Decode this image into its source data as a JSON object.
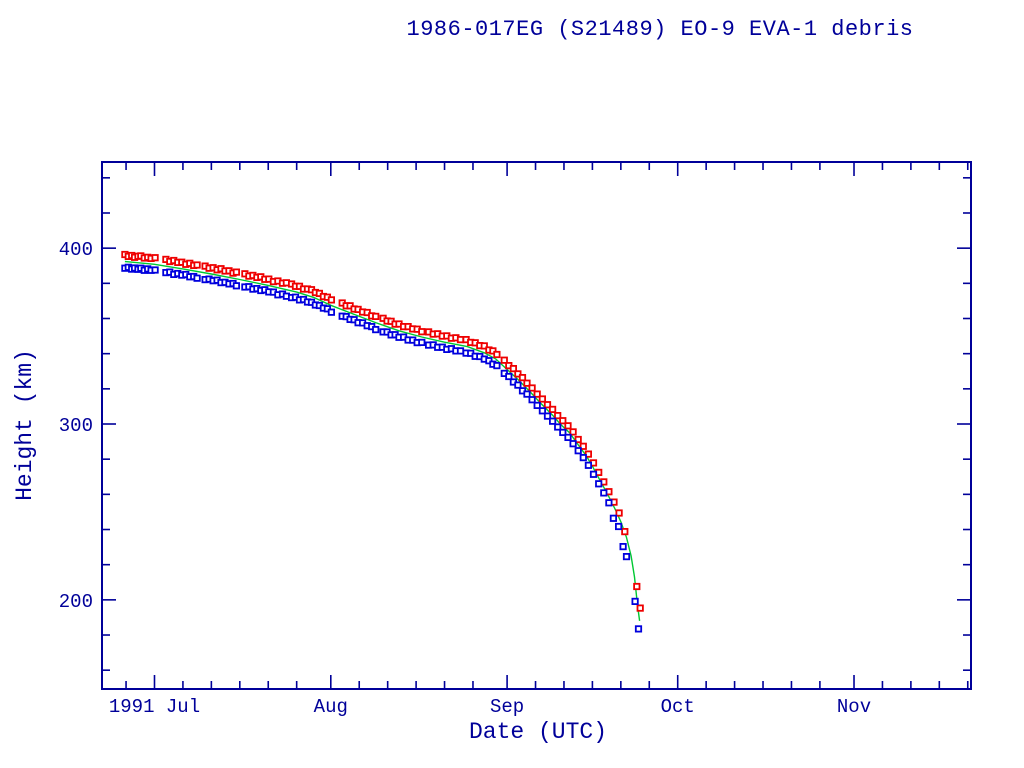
{
  "colors": {
    "axis": "#000099",
    "text": "#000099",
    "apogee": "#ee0000",
    "perigee": "#0000dd",
    "fit_line": "#00c832",
    "background": "#ffffff"
  },
  "chart_data": {
    "type": "scatter",
    "title": "1986-017EG (S21489) EO-9 EVA-1 debris",
    "xlabel": "Date (UTC)",
    "ylabel": "Height (km)",
    "x_unit": "days from 1991-07-01",
    "xlim": [
      -9.23,
      143.57
    ],
    "ylim": [
      149.3,
      449.0
    ],
    "grid": false,
    "legend": "none",
    "x_axis": {
      "major": [
        {
          "d": 0,
          "label": "1991 Jul"
        },
        {
          "d": 31,
          "label": "Aug"
        },
        {
          "d": 62,
          "label": "Sep"
        },
        {
          "d": 92,
          "label": "Oct"
        },
        {
          "d": 123,
          "label": "Nov"
        }
      ],
      "minor_d": [
        -5,
        5,
        10,
        15,
        20,
        25,
        36,
        41,
        46,
        51,
        56,
        67,
        72,
        77,
        82,
        87,
        97,
        102,
        107,
        112,
        117,
        128,
        133,
        138,
        143
      ]
    },
    "y_axis": {
      "major": [
        {
          "value": 400,
          "label": "400"
        },
        {
          "value": 300,
          "label": "300"
        },
        {
          "value": 200,
          "label": "200"
        }
      ],
      "minor_values": [
        160,
        180,
        220,
        240,
        260,
        280,
        320,
        340,
        360,
        380,
        420,
        440
      ]
    },
    "series": [
      {
        "name": "apogee-height",
        "type": "scatter",
        "marker": "open-square",
        "color": "#ee0000",
        "points": [
          [
            -5.2,
            396.4
          ],
          [
            -4.6,
            395.3
          ],
          [
            -4.0,
            395.8
          ],
          [
            -3.5,
            394.8
          ],
          [
            -2.9,
            395.4
          ],
          [
            -2.4,
            395.6
          ],
          [
            -1.8,
            394.4
          ],
          [
            -1.2,
            394.8
          ],
          [
            -0.6,
            394.2
          ],
          [
            0.1,
            394.6
          ],
          [
            2.0,
            393.6
          ],
          [
            2.7,
            392.4
          ],
          [
            3.4,
            393.0
          ],
          [
            4.1,
            391.9
          ],
          [
            4.8,
            392.0
          ],
          [
            5.5,
            390.8
          ],
          [
            6.2,
            391.4
          ],
          [
            6.9,
            390.2
          ],
          [
            7.5,
            390.4
          ],
          [
            8.9,
            389.8
          ],
          [
            9.6,
            388.6
          ],
          [
            10.3,
            388.9
          ],
          [
            11.0,
            387.7
          ],
          [
            11.7,
            388.3
          ],
          [
            12.4,
            387.0
          ],
          [
            13.1,
            387.1
          ],
          [
            13.8,
            385.8
          ],
          [
            14.4,
            386.4
          ],
          [
            15.9,
            385.4
          ],
          [
            16.6,
            384.1
          ],
          [
            17.3,
            384.5
          ],
          [
            18.0,
            383.4
          ],
          [
            18.7,
            383.7
          ],
          [
            19.4,
            382.3
          ],
          [
            20.1,
            382.4
          ],
          [
            20.9,
            381.0
          ],
          [
            21.7,
            381.3
          ],
          [
            22.5,
            380.1
          ],
          [
            23.2,
            380.3
          ],
          [
            24.1,
            379.6
          ],
          [
            24.8,
            378.3
          ],
          [
            25.5,
            378.3
          ],
          [
            26.2,
            376.8
          ],
          [
            26.9,
            376.8
          ],
          [
            27.6,
            376.4
          ],
          [
            28.3,
            374.8
          ],
          [
            29.0,
            374.3
          ],
          [
            29.7,
            372.5
          ],
          [
            30.4,
            372.1
          ],
          [
            31.1,
            370.6
          ],
          [
            33.0,
            368.8
          ],
          [
            33.7,
            367.2
          ],
          [
            34.4,
            367.2
          ],
          [
            35.1,
            365.4
          ],
          [
            35.8,
            365.2
          ],
          [
            36.6,
            363.7
          ],
          [
            37.4,
            363.4
          ],
          [
            38.2,
            361.5
          ],
          [
            38.9,
            361.2
          ],
          [
            40.2,
            360.1
          ],
          [
            40.9,
            358.6
          ],
          [
            41.6,
            358.4
          ],
          [
            42.3,
            356.8
          ],
          [
            43.0,
            356.9
          ],
          [
            43.8,
            355.4
          ],
          [
            44.6,
            355.4
          ],
          [
            45.4,
            354.1
          ],
          [
            46.2,
            353.9
          ],
          [
            47.0,
            352.5
          ],
          [
            48.2,
            352.4
          ],
          [
            49.0,
            351.1
          ],
          [
            49.8,
            351.3
          ],
          [
            50.6,
            350.0
          ],
          [
            51.4,
            350.1
          ],
          [
            52.2,
            348.8
          ],
          [
            53.0,
            349.0
          ],
          [
            53.8,
            348.0
          ],
          [
            54.8,
            348.0
          ],
          [
            55.6,
            346.4
          ],
          [
            56.4,
            346.2
          ],
          [
            57.2,
            344.6
          ],
          [
            58.0,
            344.4
          ],
          [
            58.8,
            342.1
          ],
          [
            59.5,
            341.6
          ],
          [
            60.2,
            339.5
          ],
          [
            61.5,
            336.3
          ],
          [
            62.3,
            333.2
          ],
          [
            63.1,
            331.5
          ],
          [
            63.9,
            328.5
          ],
          [
            64.7,
            326.4
          ],
          [
            65.5,
            323.2
          ],
          [
            66.4,
            320.5
          ],
          [
            67.3,
            317.0
          ],
          [
            68.2,
            314.2
          ],
          [
            69.1,
            311.0
          ],
          [
            70.0,
            308.3
          ],
          [
            70.9,
            304.8
          ],
          [
            71.8,
            301.9
          ],
          [
            72.7,
            299.0
          ],
          [
            73.6,
            295.5
          ],
          [
            74.5,
            291.2
          ],
          [
            75.4,
            287.3
          ],
          [
            76.3,
            282.9
          ],
          [
            77.2,
            277.9
          ],
          [
            78.1,
            272.5
          ],
          [
            79.0,
            267.1
          ],
          [
            79.9,
            261.5
          ],
          [
            80.8,
            255.6
          ],
          [
            81.7,
            249.4
          ],
          [
            82.7,
            238.8
          ],
          [
            84.8,
            207.6
          ],
          [
            85.4,
            195.3
          ]
        ]
      },
      {
        "name": "perigee-height",
        "type": "scatter",
        "marker": "open-square",
        "color": "#0000dd",
        "points": [
          [
            -5.2,
            388.6
          ],
          [
            -4.6,
            389.1
          ],
          [
            -4.0,
            388.1
          ],
          [
            -3.5,
            388.7
          ],
          [
            -2.9,
            388.0
          ],
          [
            -2.4,
            388.6
          ],
          [
            -1.8,
            387.4
          ],
          [
            -1.2,
            388.2
          ],
          [
            -0.6,
            387.4
          ],
          [
            0.1,
            387.6
          ],
          [
            2.0,
            386.1
          ],
          [
            2.7,
            386.4
          ],
          [
            3.4,
            385.1
          ],
          [
            4.1,
            385.6
          ],
          [
            4.8,
            384.7
          ],
          [
            5.5,
            385.0
          ],
          [
            6.2,
            383.7
          ],
          [
            6.9,
            383.9
          ],
          [
            7.5,
            382.9
          ],
          [
            8.9,
            382.1
          ],
          [
            9.6,
            382.4
          ],
          [
            10.3,
            381.5
          ],
          [
            11.0,
            381.8
          ],
          [
            11.7,
            380.4
          ],
          [
            12.4,
            380.6
          ],
          [
            13.1,
            379.7
          ],
          [
            13.8,
            379.9
          ],
          [
            14.4,
            378.6
          ],
          [
            15.9,
            377.9
          ],
          [
            16.6,
            378.1
          ],
          [
            17.3,
            376.7
          ],
          [
            18.0,
            377.0
          ],
          [
            18.7,
            375.9
          ],
          [
            19.4,
            376.3
          ],
          [
            20.1,
            375.1
          ],
          [
            20.9,
            375.0
          ],
          [
            21.7,
            373.5
          ],
          [
            22.5,
            373.9
          ],
          [
            23.2,
            372.7
          ],
          [
            24.1,
            371.9
          ],
          [
            24.8,
            372.1
          ],
          [
            25.5,
            370.6
          ],
          [
            26.2,
            370.8
          ],
          [
            26.9,
            369.4
          ],
          [
            27.6,
            369.2
          ],
          [
            28.3,
            367.7
          ],
          [
            29.0,
            367.4
          ],
          [
            29.7,
            365.9
          ],
          [
            30.4,
            365.5
          ],
          [
            31.1,
            363.6
          ],
          [
            33.0,
            361.3
          ],
          [
            33.7,
            361.1
          ],
          [
            34.4,
            359.5
          ],
          [
            35.1,
            359.3
          ],
          [
            35.8,
            357.6
          ],
          [
            36.6,
            357.5
          ],
          [
            37.4,
            355.9
          ],
          [
            38.2,
            355.4
          ],
          [
            38.9,
            353.7
          ],
          [
            40.2,
            352.4
          ],
          [
            40.9,
            352.3
          ],
          [
            41.6,
            350.7
          ],
          [
            42.3,
            350.8
          ],
          [
            43.0,
            349.3
          ],
          [
            43.8,
            349.4
          ],
          [
            44.6,
            347.8
          ],
          [
            45.4,
            347.7
          ],
          [
            46.2,
            346.3
          ],
          [
            47.0,
            346.4
          ],
          [
            48.2,
            344.9
          ],
          [
            49.0,
            345.0
          ],
          [
            49.8,
            343.6
          ],
          [
            50.6,
            343.7
          ],
          [
            51.4,
            342.4
          ],
          [
            52.2,
            342.8
          ],
          [
            53.0,
            341.6
          ],
          [
            53.8,
            341.6
          ],
          [
            54.8,
            340.3
          ],
          [
            55.6,
            340.2
          ],
          [
            56.4,
            338.5
          ],
          [
            57.2,
            338.4
          ],
          [
            58.0,
            336.9
          ],
          [
            58.8,
            336.0
          ],
          [
            59.5,
            334.0
          ],
          [
            60.2,
            333.2
          ],
          [
            61.5,
            328.8
          ],
          [
            62.3,
            327.0
          ],
          [
            63.1,
            323.9
          ],
          [
            63.9,
            322.1
          ],
          [
            64.7,
            318.9
          ],
          [
            65.5,
            317.0
          ],
          [
            66.4,
            313.8
          ],
          [
            67.3,
            310.6
          ],
          [
            68.2,
            307.5
          ],
          [
            69.1,
            304.5
          ],
          [
            70.0,
            301.6
          ],
          [
            70.9,
            298.3
          ],
          [
            71.8,
            295.2
          ],
          [
            72.7,
            292.4
          ],
          [
            73.6,
            288.8
          ],
          [
            74.5,
            284.8
          ],
          [
            75.4,
            280.9
          ],
          [
            76.3,
            276.5
          ],
          [
            77.2,
            271.4
          ],
          [
            78.1,
            266.0
          ],
          [
            79.0,
            260.8
          ],
          [
            79.9,
            255.2
          ],
          [
            80.7,
            246.4
          ],
          [
            81.6,
            241.7
          ],
          [
            82.4,
            230.3
          ],
          [
            83.0,
            224.6
          ],
          [
            84.5,
            199.1
          ],
          [
            85.1,
            183.5
          ]
        ]
      },
      {
        "name": "mean-height-fit",
        "type": "line",
        "color": "#00c832",
        "points": [
          [
            -5.2,
            392.4
          ],
          [
            0,
            390.8
          ],
          [
            5,
            388.2
          ],
          [
            10,
            385.3
          ],
          [
            15,
            382.2
          ],
          [
            20,
            378.8
          ],
          [
            25,
            375.0
          ],
          [
            28,
            372.0
          ],
          [
            31,
            367.5
          ],
          [
            35,
            362.5
          ],
          [
            39,
            357.5
          ],
          [
            43,
            353.0
          ],
          [
            47,
            349.5
          ],
          [
            51,
            346.5
          ],
          [
            55,
            344.0
          ],
          [
            58,
            340.5
          ],
          [
            60,
            337.0
          ],
          [
            62,
            331.0
          ],
          [
            64,
            325.0
          ],
          [
            66,
            318.5
          ],
          [
            68,
            311.5
          ],
          [
            70,
            305.0
          ],
          [
            71.5,
            299.5
          ],
          [
            73,
            295.0
          ],
          [
            74.2,
            289.5
          ],
          [
            75,
            286.0
          ],
          [
            76,
            281.5
          ],
          [
            77,
            276.0
          ],
          [
            78,
            270.0
          ],
          [
            79,
            264.0
          ],
          [
            80,
            258.0
          ],
          [
            81,
            251.5
          ],
          [
            82,
            244.5
          ],
          [
            83,
            235.5
          ],
          [
            83.8,
            225.0
          ],
          [
            84.4,
            213.0
          ],
          [
            84.9,
            198.0
          ],
          [
            85.3,
            188.0
          ]
        ]
      }
    ]
  }
}
